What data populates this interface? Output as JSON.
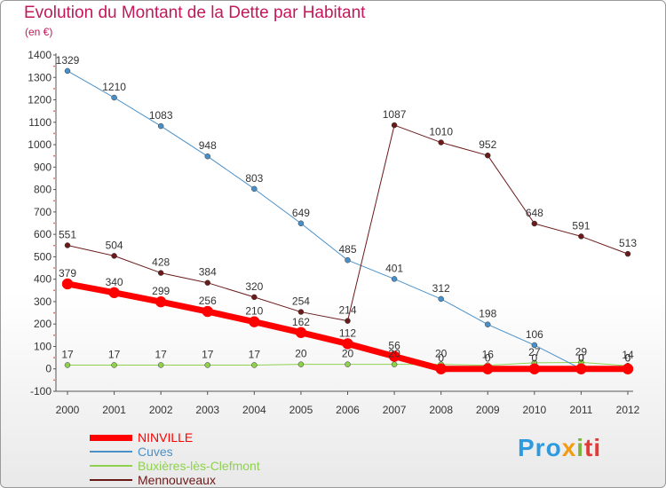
{
  "title": "Evolution du Montant de la Dette par Habitant",
  "subtitle": "(en €)",
  "logo": {
    "part1": "Pro",
    "part2": "x",
    "part3": "i",
    "part4": "ti"
  },
  "colors": {
    "title": "#c2185b",
    "NINVILLE": "#ff0000",
    "Cuves": "#4a90c8",
    "Buxieres": "#8fd14f",
    "Mennouveaux": "#6b1a1a"
  },
  "chart_data": {
    "type": "line",
    "title": "Evolution du Montant de la Dette par Habitant",
    "ylabel": "(en €)",
    "ylim": [
      -100,
      1400
    ],
    "ytick_step": 100,
    "x": [
      "2000",
      "2001",
      "2002",
      "2003",
      "2004",
      "2005",
      "2006",
      "2007",
      "2008",
      "2009",
      "2010",
      "2011",
      "2012"
    ],
    "legend": "bottom-left",
    "grid": false,
    "series": [
      {
        "name": "NINVILLE",
        "color": "#ff0000",
        "width": 7,
        "values": [
          379,
          340,
          299,
          256,
          210,
          162,
          112,
          56,
          0,
          0,
          0,
          0,
          0
        ],
        "labels": [
          "379",
          "340",
          "299",
          "256",
          "210",
          "162",
          "112",
          "56",
          "0",
          "0",
          "0",
          "0",
          "0"
        ]
      },
      {
        "name": "Cuves",
        "color": "#4a90c8",
        "width": 1,
        "values": [
          1329,
          1210,
          1083,
          948,
          803,
          649,
          485,
          401,
          312,
          198,
          106,
          0,
          0
        ],
        "labels": [
          "1329",
          "1210",
          "1083",
          "948",
          "803",
          "649",
          "485",
          "401",
          "312",
          "198",
          "106",
          "0",
          "0"
        ]
      },
      {
        "name": "Buxières-lès-Clefmont",
        "color": "#8fd14f",
        "width": 1,
        "values": [
          17,
          17,
          17,
          17,
          17,
          20,
          20,
          20,
          20,
          16,
          27,
          29,
          14
        ],
        "labels": [
          "17",
          "17",
          "17",
          "17",
          "17",
          "20",
          "20",
          "20",
          "20",
          "16",
          "27",
          "29",
          "14"
        ]
      },
      {
        "name": "Mennouveaux",
        "color": "#6b1a1a",
        "width": 1,
        "values": [
          551,
          504,
          428,
          384,
          320,
          254,
          214,
          1087,
          1010,
          952,
          648,
          591,
          513
        ],
        "labels": [
          "551",
          "504",
          "428",
          "384",
          "320",
          "254",
          "214",
          "1087",
          "1010",
          "952",
          "648",
          "591",
          "513"
        ]
      }
    ]
  }
}
